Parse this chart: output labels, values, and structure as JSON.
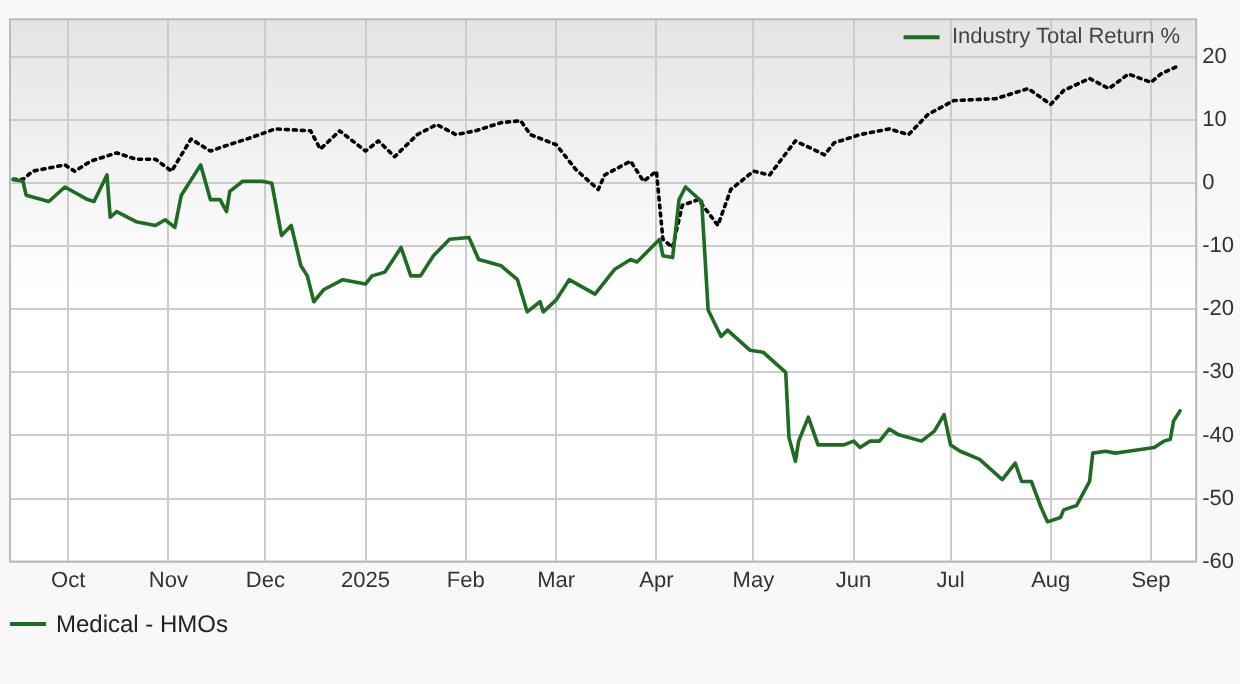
{
  "chart_data": {
    "type": "line",
    "legend_title": "Industry Total Return %",
    "legend": "bottom",
    "grid": true,
    "marker": "none",
    "xlim": [
      "2024-09-13",
      "2025-09-15"
    ],
    "xticks": [
      {
        "value": "2024-10-01",
        "label": "Oct"
      },
      {
        "value": "2024-11-01",
        "label": "Nov"
      },
      {
        "value": "2024-12-01",
        "label": "Dec"
      },
      {
        "value": "2025-01-01",
        "label": "2025"
      },
      {
        "value": "2025-02-01",
        "label": "Feb"
      },
      {
        "value": "2025-03-01",
        "label": "Mar"
      },
      {
        "value": "2025-04-01",
        "label": "Apr"
      },
      {
        "value": "2025-05-01",
        "label": "May"
      },
      {
        "value": "2025-06-01",
        "label": "Jun"
      },
      {
        "value": "2025-07-01",
        "label": "Jul"
      },
      {
        "value": "2025-08-01",
        "label": "Aug"
      },
      {
        "value": "2025-09-01",
        "label": "Sep"
      }
    ],
    "ylim": [
      -60,
      26
    ],
    "yticks": [
      -60,
      -50,
      -40,
      -30,
      -20,
      -10,
      0,
      10,
      20
    ],
    "series": [
      {
        "name": "Medical - HMOs",
        "color": "#1e6b23",
        "line_style": "solid",
        "x": [
          "2024-09-14",
          "2024-09-17",
          "2024-09-18",
          "2024-09-25",
          "2024-09-30",
          "2024-10-07",
          "2024-10-09",
          "2024-10-13",
          "2024-10-14",
          "2024-10-16",
          "2024-10-22",
          "2024-10-28",
          "2024-10-31",
          "2024-11-03",
          "2024-11-05",
          "2024-11-11",
          "2024-11-14",
          "2024-11-17",
          "2024-11-19",
          "2024-11-20",
          "2024-11-24",
          "2024-11-30",
          "2024-12-03",
          "2024-12-06",
          "2024-12-09",
          "2024-12-12",
          "2024-12-14",
          "2024-12-16",
          "2024-12-19",
          "2024-12-25",
          "2025-01-01",
          "2025-01-03",
          "2025-01-07",
          "2025-01-12",
          "2025-01-15",
          "2025-01-18",
          "2025-01-22",
          "2025-01-27",
          "2025-02-02",
          "2025-02-05",
          "2025-02-12",
          "2025-02-17",
          "2025-02-20",
          "2025-02-24",
          "2025-02-25",
          "2025-03-01",
          "2025-03-05",
          "2025-03-13",
          "2025-03-19",
          "2025-03-24",
          "2025-03-26",
          "2025-04-02",
          "2025-04-03",
          "2025-04-06",
          "2025-04-08",
          "2025-04-10",
          "2025-04-15",
          "2025-04-17",
          "2025-04-21",
          "2025-04-23",
          "2025-04-30",
          "2025-05-04",
          "2025-05-11",
          "2025-05-12",
          "2025-05-14",
          "2025-05-15",
          "2025-05-18",
          "2025-05-21",
          "2025-05-29",
          "2025-06-01",
          "2025-06-03",
          "2025-06-06",
          "2025-06-09",
          "2025-06-12",
          "2025-06-15",
          "2025-06-22",
          "2025-06-26",
          "2025-06-29",
          "2025-07-01",
          "2025-07-04",
          "2025-07-10",
          "2025-07-17",
          "2025-07-21",
          "2025-07-23",
          "2025-07-26",
          "2025-07-29",
          "2025-07-31",
          "2025-08-04",
          "2025-08-05",
          "2025-08-09",
          "2025-08-13",
          "2025-08-14",
          "2025-08-18",
          "2025-08-21",
          "2025-08-25",
          "2025-09-02",
          "2025-09-05",
          "2025-09-07",
          "2025-09-08",
          "2025-09-10"
        ],
        "values": [
          0.6,
          0.3,
          -1.9,
          -2.9,
          -0.6,
          -2.6,
          -2.9,
          1.3,
          -5.4,
          -4.5,
          -6.1,
          -6.7,
          -5.8,
          -7.0,
          -1.9,
          2.9,
          -2.6,
          -2.6,
          -4.5,
          -1.3,
          0.3,
          0.3,
          0,
          -8.3,
          -6.7,
          -13.1,
          -14.7,
          -18.8,
          -16.9,
          -15.3,
          -16.0,
          -14.7,
          -14.1,
          -10.2,
          -14.7,
          -14.7,
          -11.5,
          -8.9,
          -8.6,
          -12.1,
          -13.1,
          -15.3,
          -20.4,
          -18.8,
          -20.4,
          -18.5,
          -15.3,
          -17.6,
          -13.7,
          -12.1,
          -12.5,
          -8.9,
          -11.5,
          -11.8,
          -2.6,
          -0.6,
          -2.9,
          -20.1,
          -24.3,
          -23.3,
          -26.5,
          -26.8,
          -30.0,
          -40.3,
          -44.1,
          -40.9,
          -37.1,
          -41.5,
          -41.5,
          -40.9,
          -41.9,
          -40.9,
          -40.9,
          -39.0,
          -39.9,
          -40.9,
          -39.3,
          -36.7,
          -41.5,
          -42.5,
          -43.8,
          -47.0,
          -44.4,
          -47.3,
          -47.3,
          -51.4,
          -53.7,
          -53.0,
          -51.8,
          -51.1,
          -47.3,
          -42.8,
          -42.5,
          -42.8,
          -42.5,
          -41.9,
          -40.9,
          -40.6,
          -37.7,
          -36.1
        ]
      },
      {
        "color": "#000000",
        "line_style": "dotted",
        "x": [
          "2024-09-14",
          "2024-09-17",
          "2024-09-20",
          "2024-09-30",
          "2024-10-03",
          "2024-10-08",
          "2024-10-16",
          "2024-10-22",
          "2024-10-28",
          "2024-11-02",
          "2024-11-08",
          "2024-11-14",
          "2024-11-18",
          "2024-11-27",
          "2024-12-04",
          "2024-12-15",
          "2024-12-18",
          "2024-12-24",
          "2025-01-01",
          "2025-01-05",
          "2025-01-10",
          "2025-01-17",
          "2025-01-23",
          "2025-01-29",
          "2025-02-04",
          "2025-02-12",
          "2025-02-18",
          "2025-02-21",
          "2025-03-01",
          "2025-03-07",
          "2025-03-14",
          "2025-03-16",
          "2025-03-24",
          "2025-03-28",
          "2025-04-01",
          "2025-04-03",
          "2025-04-06",
          "2025-04-09",
          "2025-04-14",
          "2025-04-20",
          "2025-04-24",
          "2025-05-01",
          "2025-05-06",
          "2025-05-14",
          "2025-05-23",
          "2025-05-26",
          "2025-06-03",
          "2025-06-12",
          "2025-06-18",
          "2025-06-24",
          "2025-07-02",
          "2025-07-15",
          "2025-07-25",
          "2025-08-01",
          "2025-08-05",
          "2025-08-13",
          "2025-08-19",
          "2025-08-25",
          "2025-09-01",
          "2025-09-04",
          "2025-09-09"
        ],
        "values": [
          0.6,
          0.6,
          1.9,
          2.9,
          1.9,
          3.5,
          4.8,
          3.8,
          3.8,
          1.9,
          7.0,
          5.1,
          5.8,
          7.3,
          8.6,
          8.3,
          5.4,
          8.3,
          5.1,
          6.7,
          4.2,
          7.7,
          9.3,
          7.7,
          8.3,
          9.6,
          9.9,
          7.7,
          6.1,
          2.2,
          -1.0,
          1.3,
          3.5,
          0.3,
          1.9,
          -8.9,
          -10.2,
          -3.5,
          -2.6,
          -6.7,
          -1.0,
          1.9,
          1.3,
          6.7,
          4.5,
          6.4,
          7.7,
          8.6,
          7.7,
          10.9,
          13.1,
          13.4,
          15.0,
          12.5,
          14.7,
          16.6,
          15.0,
          17.3,
          16.0,
          17.3,
          18.5
        ]
      }
    ]
  }
}
